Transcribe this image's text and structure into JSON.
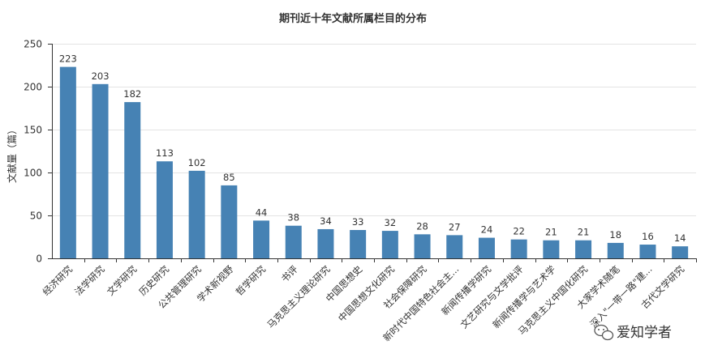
{
  "chart_data": {
    "type": "bar",
    "title": "期刊近十年文献所属栏目的分布",
    "ylabel": "文献量（篇）",
    "xlabel": "",
    "ylim": [
      0,
      250
    ],
    "yticks": [
      0,
      50,
      100,
      150,
      200,
      250
    ],
    "grid": true,
    "legend": "none",
    "bar_color": "#4682b4",
    "categories": [
      "经济研究",
      "法学研究",
      "文学研究",
      "历史研究",
      "公共管理研究",
      "学术新视野",
      "哲学研究",
      "书评",
      "马克思主义理论研究",
      "中国思想史",
      "中国思想文化研究",
      "社会保障研究",
      "新时代中国特色社会主...",
      "新闻传播学研究",
      "文艺研究与文学批评",
      "新闻传播学与艺术学",
      "马克思主义中国化研究",
      "大家学术随笔",
      "深入\"一带一路\"建...",
      "古代文学研究"
    ],
    "values": [
      223,
      203,
      182,
      113,
      102,
      85,
      44,
      38,
      34,
      33,
      32,
      28,
      27,
      24,
      22,
      21,
      21,
      18,
      16,
      14
    ]
  },
  "watermark": {
    "text": "爱知学者",
    "icon": "wechat-icon"
  }
}
